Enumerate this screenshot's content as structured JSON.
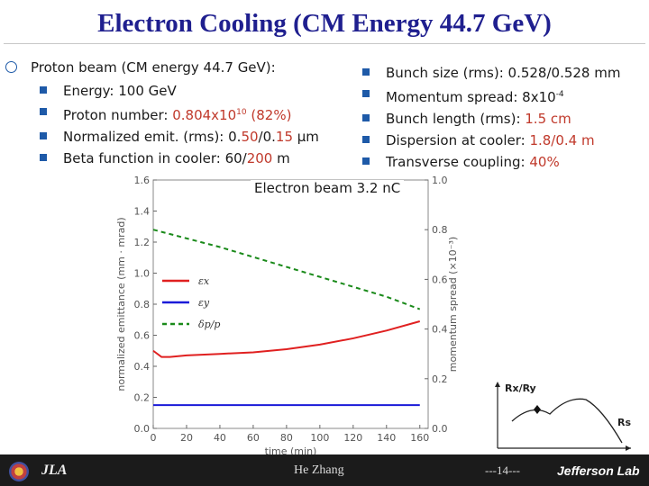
{
  "title": "Electron Cooling (CM Energy 44.7 GeV)",
  "proton": {
    "heading": "Proton beam (CM energy 44.7 GeV):",
    "energy_label": "Energy: 100 GeV",
    "number_label": "Proton number: ",
    "number_value": "0.804x10",
    "number_exp": "10",
    "number_pct": "(82%)",
    "emit_label": "Normalized emit. (rms): 0.",
    "emit_value1": "50",
    "emit_sep": "/0.",
    "emit_value2": "15",
    "emit_unit": " μm",
    "beta_label": "Beta function in cooler: 60/",
    "beta_value": "200",
    "beta_unit": " m"
  },
  "right": {
    "bunch_size": "Bunch size (rms): 0.528/0.528 mm",
    "momentum_label": "Momentum spread: 8x10",
    "momentum_exp": "-4",
    "length_label": "Bunch length (rms): ",
    "length_value": "1.5 cm",
    "dispersion_label": "Dispersion at cooler: ",
    "dispersion_value": "1.8/0.4 m",
    "coupling_label": "Transverse coupling: ",
    "coupling_value": "40%"
  },
  "electron_beam": "Electron beam 3.2 nC",
  "plot": {
    "xlabel": "time (min)",
    "ylabel_left": "normalized emittance (mm · mrad)",
    "ylabel_right": "momentum spread (×10⁻³)",
    "x_ticks": [
      "0",
      "20",
      "40",
      "60",
      "80",
      "100",
      "120",
      "140",
      "160"
    ],
    "y_left_ticks": [
      "0.0",
      "0.2",
      "0.4",
      "0.6",
      "0.8",
      "1.0",
      "1.2",
      "1.4",
      "1.6"
    ],
    "y_right_ticks": [
      "0.0",
      "0.2",
      "0.4",
      "0.6",
      "0.8",
      "1.0"
    ],
    "legend": [
      "εx",
      "εy",
      "δp/p"
    ]
  },
  "inset": {
    "ylabel": "Rx/Ry",
    "xlabel": "Rs"
  },
  "chart_data": {
    "type": "line",
    "title": "",
    "xlabel": "time (min)",
    "ylabel": "normalized emittance (mm · mrad)",
    "y2label": "momentum spread (×10⁻³)",
    "xlim": [
      0,
      165
    ],
    "ylim": [
      0,
      1.6
    ],
    "y2lim": [
      0,
      1.0
    ],
    "grid": false,
    "legend_position": "left-middle",
    "series": [
      {
        "name": "εx",
        "axis": "left",
        "color": "#e02020",
        "dash": "solid",
        "x": [
          0,
          5,
          10,
          20,
          40,
          60,
          80,
          100,
          120,
          140,
          160
        ],
        "y": [
          0.5,
          0.46,
          0.46,
          0.47,
          0.48,
          0.49,
          0.51,
          0.54,
          0.58,
          0.63,
          0.69
        ]
      },
      {
        "name": "εy",
        "axis": "left",
        "color": "#1a1ad8",
        "dash": "solid",
        "x": [
          0,
          20,
          40,
          60,
          80,
          100,
          120,
          140,
          160
        ],
        "y": [
          0.15,
          0.15,
          0.15,
          0.15,
          0.15,
          0.15,
          0.15,
          0.15,
          0.15
        ]
      },
      {
        "name": "δp/p",
        "axis": "right",
        "color": "#1a8a1a",
        "dash": "dashed",
        "x": [
          0,
          20,
          40,
          60,
          80,
          100,
          120,
          140,
          160
        ],
        "y": [
          0.8,
          0.765,
          0.73,
          0.69,
          0.65,
          0.61,
          0.57,
          0.53,
          0.48
        ]
      }
    ]
  },
  "footer": {
    "logo_text": "JLA",
    "author": "He Zhang",
    "page": "---14---",
    "brand": "Jefferson Lab"
  }
}
